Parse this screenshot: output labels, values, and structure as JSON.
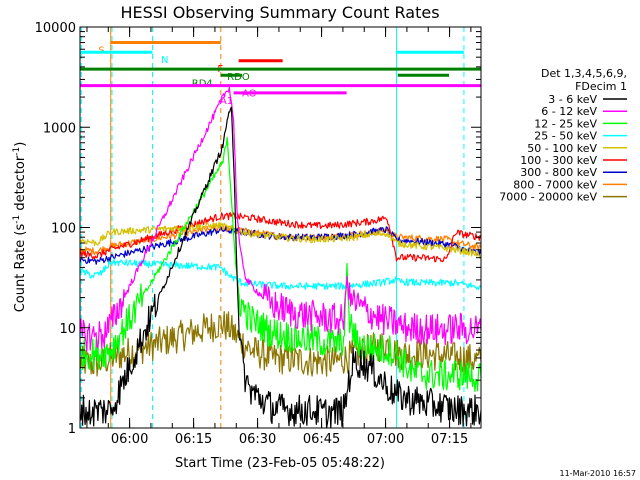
{
  "chart_data": {
    "type": "line",
    "title": "HESSI Observing Summary Count Rates",
    "xlabel": "Start Time (23-Feb-05 05:48:22)",
    "ylabel_prefix": "Count Rate (s",
    "ylabel_sup": "-1",
    "ylabel_mid": " detector",
    "ylabel_suffix": ")",
    "y_scale": "log",
    "ylim": [
      1,
      10000
    ],
    "xlim_minutes": [
      0,
      94
    ],
    "x_ticks": [
      {
        "t": 11.63,
        "label": "06:00"
      },
      {
        "t": 26.63,
        "label": "06:15"
      },
      {
        "t": 41.63,
        "label": "06:30"
      },
      {
        "t": 56.63,
        "label": "06:45"
      },
      {
        "t": 71.63,
        "label": "07:00"
      },
      {
        "t": 86.63,
        "label": "07:15"
      }
    ],
    "y_ticks": [
      {
        "v": 1,
        "label": "1"
      },
      {
        "v": 10,
        "label": "10"
      },
      {
        "v": 100,
        "label": "100"
      },
      {
        "v": 1000,
        "label": "1000"
      },
      {
        "v": 10000,
        "label": "10000"
      }
    ],
    "legend_header": [
      "Det 1,3,4,5,6,9,",
      "FDecim 1"
    ],
    "legend_position": "right",
    "timestamp": "11-Mar-2010 16:57",
    "night_minutes": [
      [
        0,
        0.3
      ],
      [
        7.5,
        17.0
      ],
      [
        74.2,
        90.0
      ]
    ],
    "attenuator_minutes": [
      7.2,
      33.0
    ],
    "flag_bars": [
      {
        "label": "S",
        "color": "#ff7f00",
        "y": 7000,
        "segments": [
          [
            7.2,
            33
          ]
        ],
        "label_t": 4.3
      },
      {
        "label": "N",
        "color": "#00ffff",
        "y": 5600,
        "segments": [
          [
            0,
            17
          ],
          [
            74.2,
            90
          ]
        ],
        "label_t": 19
      },
      {
        "label": "F",
        "color": "#ff0000",
        "y": 4600,
        "segments": [
          [
            37.2,
            47.5
          ]
        ],
        "label_t": 32.2
      },
      {
        "label": "RDO",
        "color": "#008000",
        "y": 3800,
        "segments": [
          [
            0,
            74.2
          ],
          [
            74.2,
            86.5
          ],
          [
            86.5,
            94
          ]
        ],
        "label_t": 34.5
      },
      {
        "label": "RD4",
        "color": "#008000",
        "y": 3300,
        "segments": [
          [
            33,
            38
          ],
          [
            74.5,
            86.5
          ]
        ],
        "label_t": 26.2
      },
      {
        "label": "AO",
        "color": "#ff00ff",
        "y": 2600,
        "segments": [
          [
            0,
            62.5
          ],
          [
            62.5,
            94
          ]
        ],
        "label_t": 38
      },
      {
        "label": "A1",
        "color": "#ff00ff",
        "y": 2200,
        "segments": [
          [
            36,
            62.5
          ]
        ],
        "label_t": 32.8
      }
    ],
    "series": [
      {
        "name": "3 - 6 keV",
        "color": "#000000",
        "points": [
          [
            0,
            1.6
          ],
          [
            2,
            1.4
          ],
          [
            4,
            1.5
          ],
          [
            6,
            1.5
          ],
          [
            7.3,
            1.5
          ],
          [
            33.5,
            650
          ],
          [
            34.5,
            1200
          ],
          [
            35.5,
            1500
          ],
          [
            36.2,
            300
          ],
          [
            36.8,
            35
          ],
          [
            37.5,
            7
          ],
          [
            38.5,
            3.5
          ],
          [
            39.5,
            2.5
          ],
          [
            42,
            2
          ],
          [
            45,
            1.6
          ],
          [
            50,
            1.5
          ],
          [
            55,
            1.5
          ],
          [
            58,
            1.4
          ],
          [
            62,
            1.5
          ],
          [
            63,
            3
          ],
          [
            64,
            4.5
          ],
          [
            66,
            4.5
          ],
          [
            68,
            4
          ],
          [
            70,
            3.2
          ],
          [
            74.2,
            2.1
          ],
          [
            80,
            1.8
          ],
          [
            86,
            1.6
          ],
          [
            88,
            1.5
          ],
          [
            90,
            1.5
          ],
          [
            92,
            1.5
          ],
          [
            94,
            1.5
          ]
        ]
      },
      {
        "name": "6 - 12 keV",
        "color": "#ff00ff",
        "points": [
          [
            0,
            8.5
          ],
          [
            3,
            8.3
          ],
          [
            5.5,
            8.5
          ],
          [
            7.3,
            11
          ],
          [
            33.5,
            2000
          ],
          [
            35,
            2500
          ],
          [
            36,
            1200
          ],
          [
            36.8,
            150
          ],
          [
            37.5,
            60
          ],
          [
            39,
            30
          ],
          [
            42,
            22
          ],
          [
            45,
            17
          ],
          [
            50,
            14
          ],
          [
            55,
            13
          ],
          [
            58,
            12.5
          ],
          [
            60,
            12
          ],
          [
            62,
            12
          ],
          [
            62.6,
            35
          ],
          [
            63,
            20
          ],
          [
            65,
            17
          ],
          [
            68,
            14
          ],
          [
            71,
            12
          ],
          [
            74.2,
            11
          ],
          [
            76,
            10
          ],
          [
            80,
            9.8
          ],
          [
            86,
            9.5
          ],
          [
            88,
            10
          ],
          [
            90,
            9.7
          ],
          [
            94,
            9.5
          ]
        ]
      },
      {
        "name": "12 - 25 keV",
        "color": "#00ff00",
        "points": [
          [
            0,
            5.5
          ],
          [
            4,
            5.5
          ],
          [
            7.3,
            6
          ],
          [
            33.5,
            450
          ],
          [
            34.5,
            800
          ],
          [
            35.5,
            200
          ],
          [
            36.5,
            40
          ],
          [
            37.5,
            18
          ],
          [
            40,
            12
          ],
          [
            45,
            9
          ],
          [
            50,
            8
          ],
          [
            55,
            7.5
          ],
          [
            59,
            7
          ],
          [
            61,
            7
          ],
          [
            62,
            8
          ],
          [
            62.6,
            45
          ],
          [
            63,
            12
          ],
          [
            65,
            7
          ],
          [
            70,
            6
          ],
          [
            73,
            6
          ],
          [
            74.2,
            5.5
          ],
          [
            78,
            3.5
          ],
          [
            86,
            3.3
          ],
          [
            88,
            3.5
          ],
          [
            90,
            3.3
          ],
          [
            94,
            3.2
          ]
        ]
      },
      {
        "name": "25 - 50 keV",
        "color": "#00ffff",
        "points": [
          [
            0,
            37
          ],
          [
            3,
            33
          ],
          [
            5,
            35
          ],
          [
            7.2,
            45
          ],
          [
            33,
            40
          ],
          [
            35,
            33
          ],
          [
            38,
            28
          ],
          [
            42,
            27
          ],
          [
            48,
            26
          ],
          [
            55,
            26
          ],
          [
            62,
            26
          ],
          [
            66,
            27
          ],
          [
            70,
            28
          ],
          [
            72,
            29
          ],
          [
            74,
            30
          ],
          [
            74.2,
            29
          ],
          [
            80,
            28
          ],
          [
            86,
            28
          ],
          [
            88,
            28
          ],
          [
            90,
            27
          ],
          [
            92,
            26
          ],
          [
            94,
            25
          ]
        ]
      },
      {
        "name": "50 - 100 keV",
        "color": "#d4c000",
        "points": [
          [
            0,
            75
          ],
          [
            4,
            70
          ],
          [
            7.2,
            90
          ],
          [
            33,
            105
          ],
          [
            36,
            95
          ],
          [
            40,
            87
          ],
          [
            45,
            82
          ],
          [
            50,
            78
          ],
          [
            55,
            76
          ],
          [
            60,
            77
          ],
          [
            64,
            80
          ],
          [
            68,
            85
          ],
          [
            72,
            88
          ],
          [
            74.2,
            70
          ],
          [
            80,
            65
          ],
          [
            86,
            62
          ],
          [
            88,
            60
          ],
          [
            90,
            58
          ],
          [
            92,
            56
          ],
          [
            94,
            52
          ]
        ]
      },
      {
        "name": "100 - 300 keV",
        "color": "#ff0000",
        "points": [
          [
            0,
            55
          ],
          [
            4,
            52
          ],
          [
            7.2,
            60
          ],
          [
            33,
            130
          ],
          [
            36,
            130
          ],
          [
            40,
            125
          ],
          [
            45,
            115
          ],
          [
            50,
            108
          ],
          [
            55,
            104
          ],
          [
            60,
            105
          ],
          [
            64,
            110
          ],
          [
            68,
            115
          ],
          [
            72,
            125
          ],
          [
            74.2,
            50
          ],
          [
            80,
            50
          ],
          [
            86,
            48
          ],
          [
            88,
            90
          ],
          [
            90,
            85
          ],
          [
            94,
            80
          ]
        ]
      },
      {
        "name": "300 - 800 keV",
        "color": "#0000cd",
        "points": [
          [
            0,
            48
          ],
          [
            4,
            46
          ],
          [
            7.2,
            50
          ],
          [
            33,
            95
          ],
          [
            36,
            92
          ],
          [
            40,
            88
          ],
          [
            45,
            82
          ],
          [
            50,
            80
          ],
          [
            55,
            80
          ],
          [
            60,
            82
          ],
          [
            64,
            85
          ],
          [
            68,
            90
          ],
          [
            72,
            95
          ],
          [
            74.2,
            75
          ],
          [
            80,
            72
          ],
          [
            86,
            68
          ],
          [
            88,
            65
          ],
          [
            90,
            60
          ],
          [
            94,
            55
          ]
        ]
      },
      {
        "name": "800 - 7000 keV",
        "color": "#ff7f00",
        "points": [
          [
            0,
            60
          ],
          [
            4,
            58
          ],
          [
            7.2,
            65
          ],
          [
            33,
            100
          ],
          [
            36,
            95
          ],
          [
            40,
            90
          ],
          [
            45,
            84
          ],
          [
            50,
            80
          ],
          [
            55,
            80
          ],
          [
            60,
            82
          ],
          [
            64,
            85
          ],
          [
            68,
            88
          ],
          [
            72,
            95
          ],
          [
            74.2,
            80
          ],
          [
            80,
            78
          ],
          [
            86,
            76
          ],
          [
            88,
            70
          ],
          [
            90,
            68
          ],
          [
            94,
            62
          ]
        ]
      },
      {
        "name": "7000 - 20000 keV",
        "color": "#8b7500",
        "points": [
          [
            0,
            4.6
          ],
          [
            3,
            4.3
          ],
          [
            5,
            4.5
          ],
          [
            7.3,
            5
          ],
          [
            33,
            11
          ],
          [
            35,
            10
          ],
          [
            37,
            8
          ],
          [
            40,
            6
          ],
          [
            45,
            5
          ],
          [
            50,
            4.8
          ],
          [
            55,
            4.6
          ],
          [
            60,
            4.6
          ],
          [
            65,
            5.5
          ],
          [
            70,
            6.5
          ],
          [
            72,
            7
          ],
          [
            74.2,
            5.5
          ],
          [
            80,
            5.5
          ],
          [
            86,
            5.2
          ],
          [
            88,
            5
          ],
          [
            90,
            5
          ],
          [
            94,
            4.6
          ]
        ]
      }
    ]
  }
}
